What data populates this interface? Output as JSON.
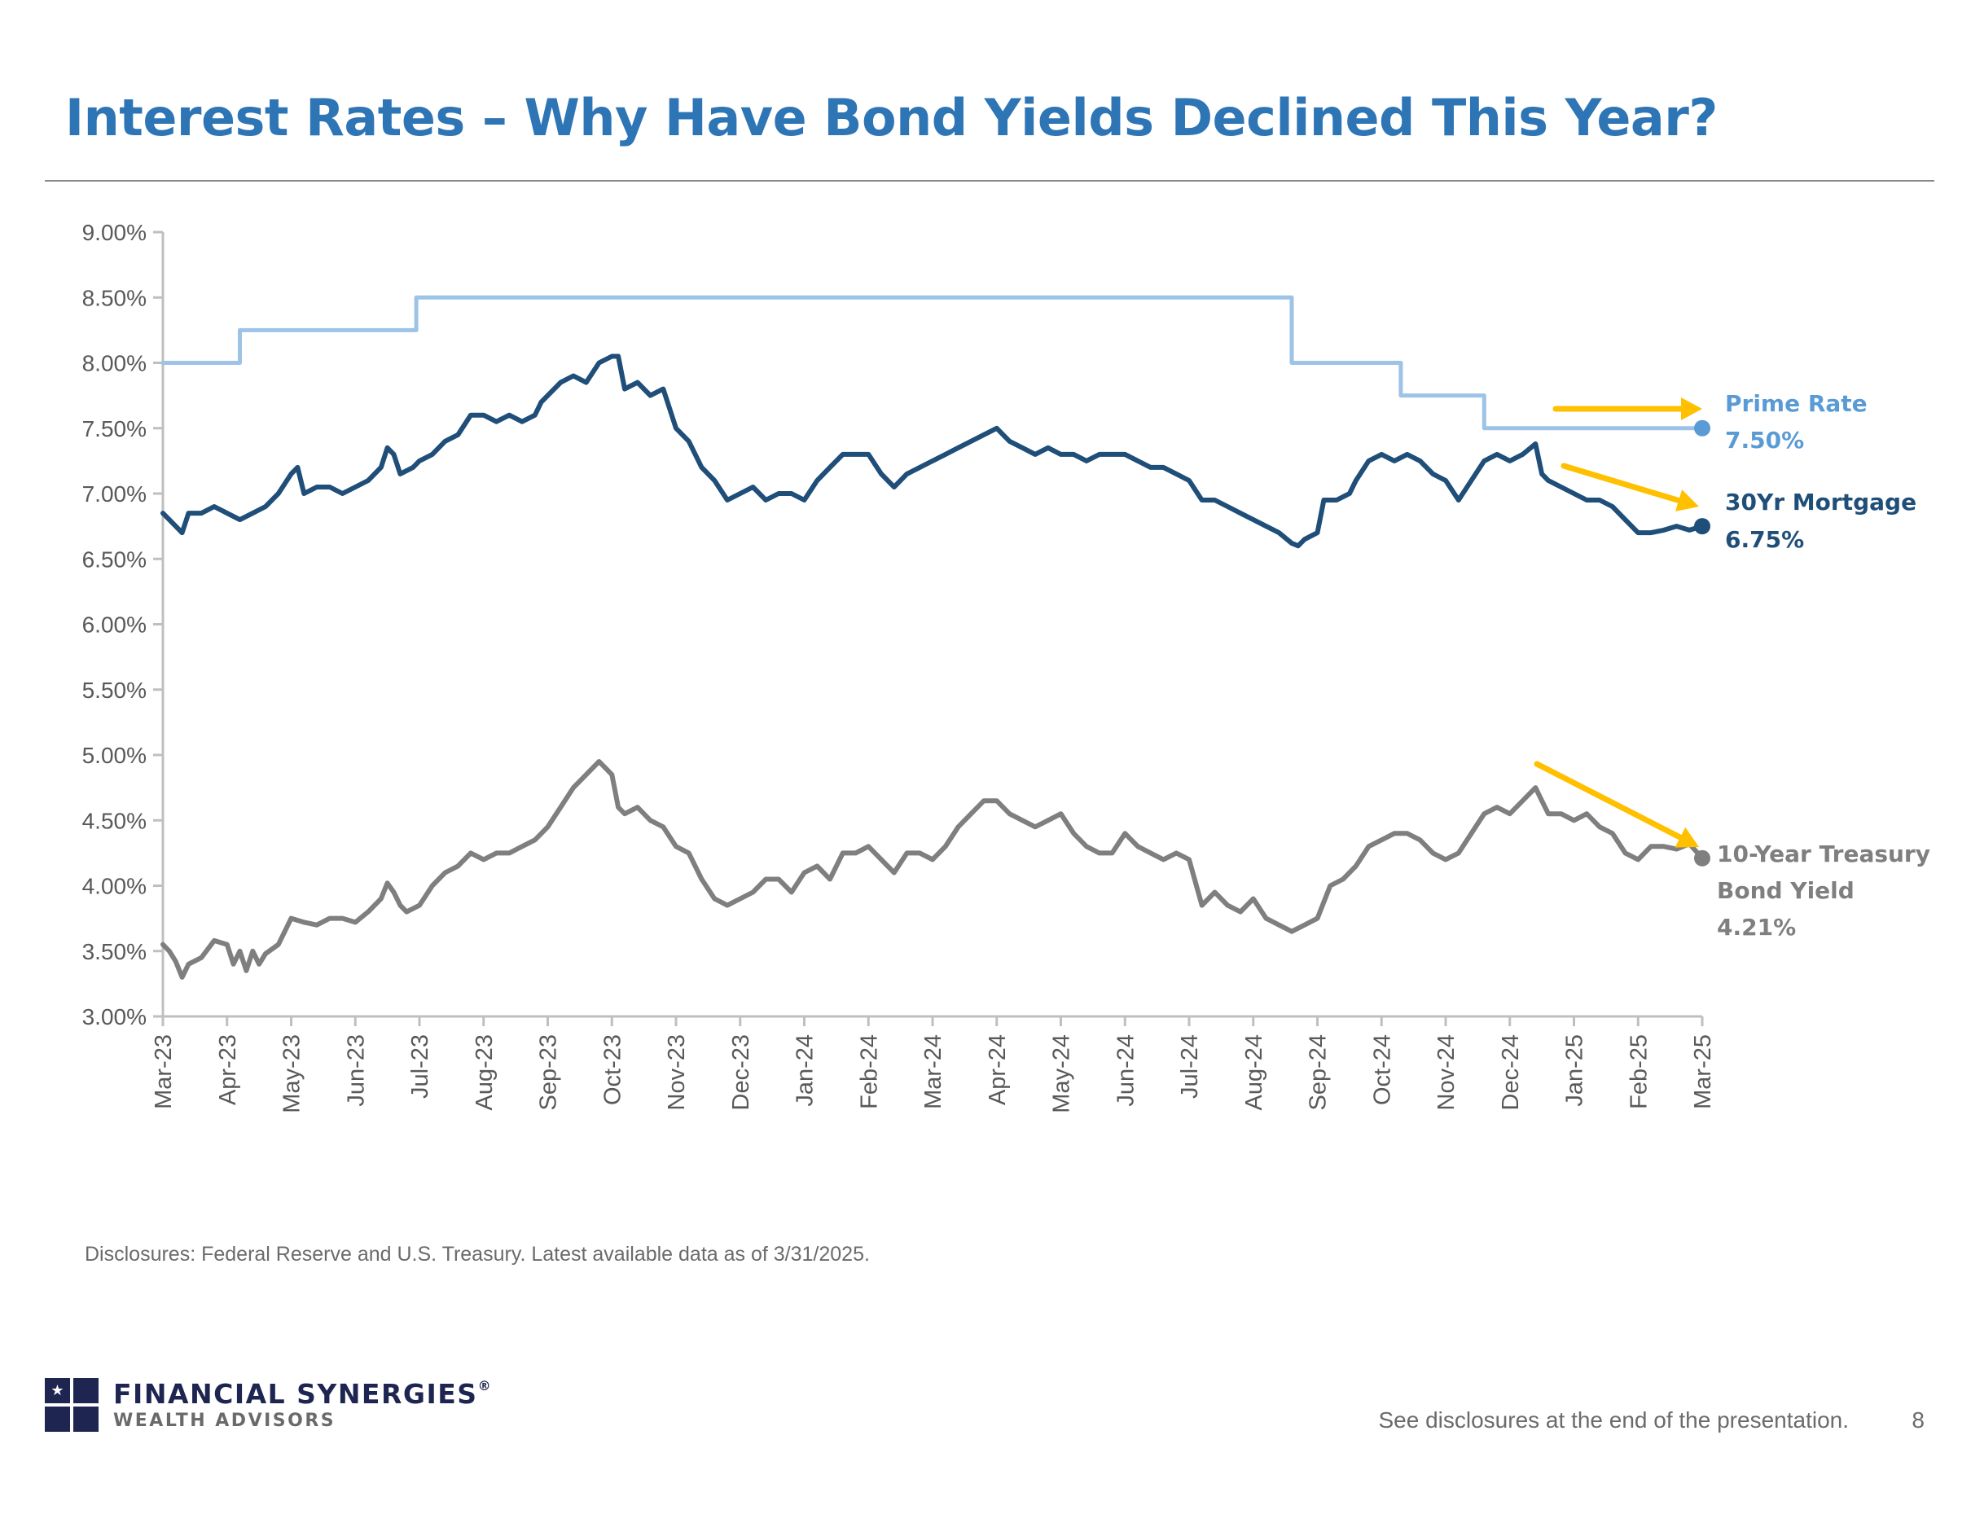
{
  "slide": {
    "title": "Interest Rates – Why Have Bond Yields Declined This Year?",
    "disclosure": "Disclosures: Federal Reserve and U.S. Treasury. Latest available data as of 3/31/2025.",
    "footer_note": "See disclosures at the end of the presentation.",
    "page_number": "8"
  },
  "logo": {
    "name": "FINANCIAL SYNERGIES",
    "registered": "®",
    "subtitle": "WEALTH ADVISORS",
    "icon": "star-grid-logo-icon"
  },
  "chart_data": {
    "type": "line",
    "title": "",
    "xlabel": "",
    "ylabel": "",
    "x_ticks": [
      "Mar-23",
      "Apr-23",
      "May-23",
      "Jun-23",
      "Jul-23",
      "Aug-23",
      "Sep-23",
      "Oct-23",
      "Nov-23",
      "Dec-23",
      "Jan-24",
      "Feb-24",
      "Mar-24",
      "Apr-24",
      "May-24",
      "Jun-24",
      "Jul-24",
      "Aug-24",
      "Sep-24",
      "Oct-24",
      "Nov-24",
      "Dec-24",
      "Jan-25",
      "Feb-25",
      "Mar-25"
    ],
    "y_ticks": [
      "9.00%",
      "8.50%",
      "8.00%",
      "7.50%",
      "7.00%",
      "6.50%",
      "6.00%",
      "5.50%",
      "5.00%",
      "4.50%",
      "4.00%",
      "3.50%",
      "3.00%"
    ],
    "ylim": [
      3.0,
      9.0
    ],
    "x_range_months": [
      0,
      24
    ],
    "grid": false,
    "arrow_color": "#ffc000",
    "series": [
      {
        "name": "Prime Rate",
        "color": "#9dc3e6",
        "end_marker_color": "#5b9bd5",
        "label_color": "#5b9bd5",
        "step": true,
        "points": [
          [
            0,
            8.0
          ],
          [
            1.2,
            8.0
          ],
          [
            1.2,
            8.25
          ],
          [
            3.95,
            8.25
          ],
          [
            3.95,
            8.5
          ],
          [
            17.6,
            8.5
          ],
          [
            17.6,
            8.0
          ],
          [
            19.3,
            8.0
          ],
          [
            19.3,
            7.75
          ],
          [
            20.6,
            7.75
          ],
          [
            20.6,
            7.5
          ],
          [
            24,
            7.5
          ]
        ],
        "end_label_line1": "Prime Rate",
        "end_label_line2": "7.50%"
      },
      {
        "name": "30Yr Mortgage",
        "color": "#1f4e79",
        "end_marker_color": "#1f4e79",
        "label_color": "#1f4e79",
        "step": false,
        "points": [
          [
            0,
            6.85
          ],
          [
            0.2,
            6.75
          ],
          [
            0.3,
            6.7
          ],
          [
            0.4,
            6.85
          ],
          [
            0.6,
            6.85
          ],
          [
            0.8,
            6.9
          ],
          [
            1.0,
            6.85
          ],
          [
            1.2,
            6.8
          ],
          [
            1.4,
            6.85
          ],
          [
            1.6,
            6.9
          ],
          [
            1.8,
            7.0
          ],
          [
            2.0,
            7.15
          ],
          [
            2.1,
            7.2
          ],
          [
            2.2,
            7.0
          ],
          [
            2.4,
            7.05
          ],
          [
            2.6,
            7.05
          ],
          [
            2.8,
            7.0
          ],
          [
            3.0,
            7.05
          ],
          [
            3.2,
            7.1
          ],
          [
            3.4,
            7.2
          ],
          [
            3.5,
            7.35
          ],
          [
            3.6,
            7.3
          ],
          [
            3.7,
            7.15
          ],
          [
            3.9,
            7.2
          ],
          [
            4.0,
            7.25
          ],
          [
            4.2,
            7.3
          ],
          [
            4.4,
            7.4
          ],
          [
            4.6,
            7.45
          ],
          [
            4.8,
            7.6
          ],
          [
            5.0,
            7.6
          ],
          [
            5.2,
            7.55
          ],
          [
            5.4,
            7.6
          ],
          [
            5.6,
            7.55
          ],
          [
            5.8,
            7.6
          ],
          [
            5.9,
            7.7
          ],
          [
            6.0,
            7.75
          ],
          [
            6.2,
            7.85
          ],
          [
            6.4,
            7.9
          ],
          [
            6.6,
            7.85
          ],
          [
            6.8,
            8.0
          ],
          [
            7.0,
            8.05
          ],
          [
            7.1,
            8.05
          ],
          [
            7.2,
            7.8
          ],
          [
            7.4,
            7.85
          ],
          [
            7.6,
            7.75
          ],
          [
            7.8,
            7.8
          ],
          [
            8.0,
            7.5
          ],
          [
            8.2,
            7.4
          ],
          [
            8.4,
            7.2
          ],
          [
            8.6,
            7.1
          ],
          [
            8.8,
            6.95
          ],
          [
            9.0,
            7.0
          ],
          [
            9.2,
            7.05
          ],
          [
            9.4,
            6.95
          ],
          [
            9.6,
            7.0
          ],
          [
            9.8,
            7.0
          ],
          [
            10.0,
            6.95
          ],
          [
            10.2,
            7.1
          ],
          [
            10.4,
            7.2
          ],
          [
            10.6,
            7.3
          ],
          [
            10.8,
            7.3
          ],
          [
            11.0,
            7.3
          ],
          [
            11.2,
            7.15
          ],
          [
            11.4,
            7.05
          ],
          [
            11.6,
            7.15
          ],
          [
            11.8,
            7.2
          ],
          [
            12.0,
            7.25
          ],
          [
            12.2,
            7.3
          ],
          [
            12.4,
            7.35
          ],
          [
            12.6,
            7.4
          ],
          [
            12.8,
            7.45
          ],
          [
            13.0,
            7.5
          ],
          [
            13.1,
            7.45
          ],
          [
            13.2,
            7.4
          ],
          [
            13.4,
            7.35
          ],
          [
            13.6,
            7.3
          ],
          [
            13.8,
            7.35
          ],
          [
            14.0,
            7.3
          ],
          [
            14.2,
            7.3
          ],
          [
            14.4,
            7.25
          ],
          [
            14.6,
            7.3
          ],
          [
            14.8,
            7.3
          ],
          [
            15.0,
            7.3
          ],
          [
            15.2,
            7.25
          ],
          [
            15.4,
            7.2
          ],
          [
            15.6,
            7.2
          ],
          [
            15.8,
            7.15
          ],
          [
            16.0,
            7.1
          ],
          [
            16.2,
            6.95
          ],
          [
            16.4,
            6.95
          ],
          [
            16.6,
            6.9
          ],
          [
            16.8,
            6.85
          ],
          [
            17.0,
            6.8
          ],
          [
            17.2,
            6.75
          ],
          [
            17.4,
            6.7
          ],
          [
            17.6,
            6.62
          ],
          [
            17.7,
            6.6
          ],
          [
            17.8,
            6.65
          ],
          [
            18.0,
            6.7
          ],
          [
            18.1,
            6.95
          ],
          [
            18.3,
            6.95
          ],
          [
            18.5,
            7.0
          ],
          [
            18.6,
            7.1
          ],
          [
            18.8,
            7.25
          ],
          [
            19.0,
            7.3
          ],
          [
            19.2,
            7.25
          ],
          [
            19.4,
            7.3
          ],
          [
            19.6,
            7.25
          ],
          [
            19.8,
            7.15
          ],
          [
            20.0,
            7.1
          ],
          [
            20.2,
            6.95
          ],
          [
            20.4,
            7.1
          ],
          [
            20.6,
            7.25
          ],
          [
            20.8,
            7.3
          ],
          [
            21.0,
            7.25
          ],
          [
            21.2,
            7.3
          ],
          [
            21.4,
            7.38
          ],
          [
            21.5,
            7.15
          ],
          [
            21.6,
            7.1
          ],
          [
            21.8,
            7.05
          ],
          [
            22.0,
            7.0
          ],
          [
            22.2,
            6.95
          ],
          [
            22.4,
            6.95
          ],
          [
            22.6,
            6.9
          ],
          [
            22.8,
            6.8
          ],
          [
            23.0,
            6.7
          ],
          [
            23.2,
            6.7
          ],
          [
            23.4,
            6.72
          ],
          [
            23.6,
            6.75
          ],
          [
            23.8,
            6.72
          ],
          [
            24,
            6.75
          ]
        ],
        "end_label_line1": "30Yr Mortgage",
        "end_label_line2": "6.75%"
      },
      {
        "name": "10-Year Treasury Bond Yield",
        "color": "#7f7f7f",
        "end_marker_color": "#7f7f7f",
        "label_color": "#7f7f7f",
        "step": false,
        "points": [
          [
            0,
            3.55
          ],
          [
            0.1,
            3.5
          ],
          [
            0.2,
            3.42
          ],
          [
            0.3,
            3.3
          ],
          [
            0.4,
            3.4
          ],
          [
            0.6,
            3.45
          ],
          [
            0.8,
            3.58
          ],
          [
            1.0,
            3.55
          ],
          [
            1.1,
            3.4
          ],
          [
            1.2,
            3.5
          ],
          [
            1.3,
            3.35
          ],
          [
            1.4,
            3.5
          ],
          [
            1.5,
            3.4
          ],
          [
            1.6,
            3.48
          ],
          [
            1.8,
            3.55
          ],
          [
            2.0,
            3.75
          ],
          [
            2.2,
            3.72
          ],
          [
            2.4,
            3.7
          ],
          [
            2.6,
            3.75
          ],
          [
            2.8,
            3.75
          ],
          [
            3.0,
            3.72
          ],
          [
            3.2,
            3.8
          ],
          [
            3.4,
            3.9
          ],
          [
            3.5,
            4.02
          ],
          [
            3.6,
            3.95
          ],
          [
            3.7,
            3.85
          ],
          [
            3.8,
            3.8
          ],
          [
            4.0,
            3.85
          ],
          [
            4.2,
            4.0
          ],
          [
            4.4,
            4.1
          ],
          [
            4.6,
            4.15
          ],
          [
            4.8,
            4.25
          ],
          [
            5.0,
            4.2
          ],
          [
            5.2,
            4.25
          ],
          [
            5.4,
            4.25
          ],
          [
            5.6,
            4.3
          ],
          [
            5.8,
            4.35
          ],
          [
            6.0,
            4.45
          ],
          [
            6.2,
            4.6
          ],
          [
            6.4,
            4.75
          ],
          [
            6.6,
            4.85
          ],
          [
            6.8,
            4.95
          ],
          [
            6.9,
            4.9
          ],
          [
            7.0,
            4.85
          ],
          [
            7.1,
            4.6
          ],
          [
            7.2,
            4.55
          ],
          [
            7.4,
            4.6
          ],
          [
            7.6,
            4.5
          ],
          [
            7.8,
            4.45
          ],
          [
            8.0,
            4.3
          ],
          [
            8.2,
            4.25
          ],
          [
            8.4,
            4.05
          ],
          [
            8.6,
            3.9
          ],
          [
            8.8,
            3.85
          ],
          [
            9.0,
            3.9
          ],
          [
            9.2,
            3.95
          ],
          [
            9.4,
            4.05
          ],
          [
            9.6,
            4.05
          ],
          [
            9.8,
            3.95
          ],
          [
            10.0,
            4.1
          ],
          [
            10.2,
            4.15
          ],
          [
            10.4,
            4.05
          ],
          [
            10.6,
            4.25
          ],
          [
            10.8,
            4.25
          ],
          [
            11.0,
            4.3
          ],
          [
            11.2,
            4.2
          ],
          [
            11.4,
            4.1
          ],
          [
            11.6,
            4.25
          ],
          [
            11.8,
            4.25
          ],
          [
            12.0,
            4.2
          ],
          [
            12.2,
            4.3
          ],
          [
            12.4,
            4.45
          ],
          [
            12.6,
            4.55
          ],
          [
            12.8,
            4.65
          ],
          [
            13.0,
            4.65
          ],
          [
            13.2,
            4.55
          ],
          [
            13.4,
            4.5
          ],
          [
            13.6,
            4.45
          ],
          [
            13.8,
            4.5
          ],
          [
            14.0,
            4.55
          ],
          [
            14.2,
            4.4
          ],
          [
            14.4,
            4.3
          ],
          [
            14.6,
            4.25
          ],
          [
            14.8,
            4.25
          ],
          [
            15.0,
            4.4
          ],
          [
            15.2,
            4.3
          ],
          [
            15.4,
            4.25
          ],
          [
            15.6,
            4.2
          ],
          [
            15.8,
            4.25
          ],
          [
            16.0,
            4.2
          ],
          [
            16.2,
            3.85
          ],
          [
            16.4,
            3.95
          ],
          [
            16.6,
            3.85
          ],
          [
            16.8,
            3.8
          ],
          [
            17.0,
            3.9
          ],
          [
            17.2,
            3.75
          ],
          [
            17.4,
            3.7
          ],
          [
            17.6,
            3.65
          ],
          [
            17.8,
            3.7
          ],
          [
            18.0,
            3.75
          ],
          [
            18.2,
            4.0
          ],
          [
            18.4,
            4.05
          ],
          [
            18.6,
            4.15
          ],
          [
            18.8,
            4.3
          ],
          [
            19.0,
            4.35
          ],
          [
            19.2,
            4.4
          ],
          [
            19.4,
            4.4
          ],
          [
            19.6,
            4.35
          ],
          [
            19.8,
            4.25
          ],
          [
            20.0,
            4.2
          ],
          [
            20.2,
            4.25
          ],
          [
            20.4,
            4.4
          ],
          [
            20.6,
            4.55
          ],
          [
            20.8,
            4.6
          ],
          [
            21.0,
            4.55
          ],
          [
            21.2,
            4.65
          ],
          [
            21.4,
            4.75
          ],
          [
            21.5,
            4.65
          ],
          [
            21.6,
            4.55
          ],
          [
            21.8,
            4.55
          ],
          [
            22.0,
            4.5
          ],
          [
            22.2,
            4.55
          ],
          [
            22.4,
            4.45
          ],
          [
            22.6,
            4.4
          ],
          [
            22.8,
            4.25
          ],
          [
            23.0,
            4.2
          ],
          [
            23.2,
            4.3
          ],
          [
            23.4,
            4.3
          ],
          [
            23.6,
            4.28
          ],
          [
            23.8,
            4.32
          ],
          [
            24,
            4.21
          ]
        ],
        "end_label_line1": "10-Year Treasury",
        "end_label_line2": "Bond Yield",
        "end_label_line3": "4.21%"
      }
    ]
  }
}
